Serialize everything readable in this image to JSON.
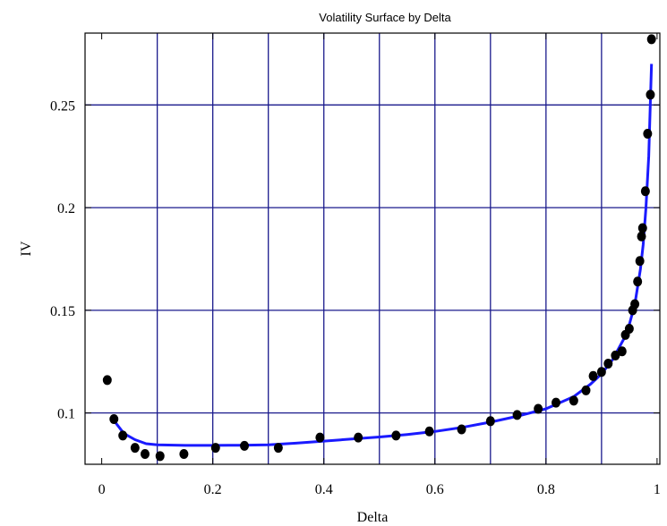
{
  "chart_data": {
    "type": "scatter",
    "title": "Volatility Surface by Delta",
    "xlabel": "Delta",
    "ylabel": "IV",
    "xlim": [
      -0.03,
      1.005
    ],
    "ylim": [
      0.075,
      0.285
    ],
    "grid": true,
    "x_ticks": [
      0,
      0.2,
      0.4,
      0.6,
      0.8,
      1
    ],
    "x_tick_labels": [
      "0",
      "0.2",
      "0.4",
      "0.6",
      "0.8",
      "1"
    ],
    "x_grid": [
      0.1,
      0.2,
      0.3,
      0.4,
      0.5,
      0.6,
      0.7,
      0.8,
      0.9
    ],
    "y_ticks": [
      0.1,
      0.15,
      0.2,
      0.25
    ],
    "y_tick_labels": [
      "0.1",
      "0.15",
      "0.2",
      "0.25"
    ],
    "y_grid": [
      0.1,
      0.15,
      0.2,
      0.25
    ],
    "colors": {
      "grid": "#1a1a8c",
      "fit_line": "#1a1aff",
      "points": "#000000",
      "frame": "#000000"
    },
    "points": [
      {
        "x": 0.01,
        "y": 0.116
      },
      {
        "x": 0.022,
        "y": 0.097
      },
      {
        "x": 0.038,
        "y": 0.089
      },
      {
        "x": 0.06,
        "y": 0.083
      },
      {
        "x": 0.078,
        "y": 0.08
      },
      {
        "x": 0.105,
        "y": 0.079
      },
      {
        "x": 0.148,
        "y": 0.08
      },
      {
        "x": 0.205,
        "y": 0.083
      },
      {
        "x": 0.257,
        "y": 0.084
      },
      {
        "x": 0.318,
        "y": 0.083
      },
      {
        "x": 0.393,
        "y": 0.088
      },
      {
        "x": 0.462,
        "y": 0.088
      },
      {
        "x": 0.53,
        "y": 0.089
      },
      {
        "x": 0.59,
        "y": 0.091
      },
      {
        "x": 0.648,
        "y": 0.092
      },
      {
        "x": 0.7,
        "y": 0.096
      },
      {
        "x": 0.748,
        "y": 0.099
      },
      {
        "x": 0.786,
        "y": 0.102
      },
      {
        "x": 0.818,
        "y": 0.105
      },
      {
        "x": 0.85,
        "y": 0.106
      },
      {
        "x": 0.872,
        "y": 0.111
      },
      {
        "x": 0.885,
        "y": 0.118
      },
      {
        "x": 0.9,
        "y": 0.12
      },
      {
        "x": 0.912,
        "y": 0.124
      },
      {
        "x": 0.925,
        "y": 0.128
      },
      {
        "x": 0.937,
        "y": 0.13
      },
      {
        "x": 0.943,
        "y": 0.138
      },
      {
        "x": 0.95,
        "y": 0.141
      },
      {
        "x": 0.956,
        "y": 0.15
      },
      {
        "x": 0.96,
        "y": 0.153
      },
      {
        "x": 0.965,
        "y": 0.164
      },
      {
        "x": 0.969,
        "y": 0.174
      },
      {
        "x": 0.972,
        "y": 0.186
      },
      {
        "x": 0.974,
        "y": 0.19
      },
      {
        "x": 0.979,
        "y": 0.208
      },
      {
        "x": 0.983,
        "y": 0.236
      },
      {
        "x": 0.988,
        "y": 0.255
      },
      {
        "x": 0.99,
        "y": 0.282
      }
    ],
    "fit_curve": [
      {
        "x": 0.02,
        "y": 0.097
      },
      {
        "x": 0.04,
        "y": 0.09
      },
      {
        "x": 0.06,
        "y": 0.087
      },
      {
        "x": 0.08,
        "y": 0.085
      },
      {
        "x": 0.1,
        "y": 0.0845
      },
      {
        "x": 0.15,
        "y": 0.0842
      },
      {
        "x": 0.2,
        "y": 0.0842
      },
      {
        "x": 0.25,
        "y": 0.0843
      },
      {
        "x": 0.3,
        "y": 0.0845
      },
      {
        "x": 0.35,
        "y": 0.0853
      },
      {
        "x": 0.4,
        "y": 0.0863
      },
      {
        "x": 0.45,
        "y": 0.0873
      },
      {
        "x": 0.5,
        "y": 0.0883
      },
      {
        "x": 0.55,
        "y": 0.0895
      },
      {
        "x": 0.6,
        "y": 0.091
      },
      {
        "x": 0.65,
        "y": 0.093
      },
      {
        "x": 0.7,
        "y": 0.0955
      },
      {
        "x": 0.75,
        "y": 0.0985
      },
      {
        "x": 0.8,
        "y": 0.102
      },
      {
        "x": 0.85,
        "y": 0.108
      },
      {
        "x": 0.88,
        "y": 0.114
      },
      {
        "x": 0.9,
        "y": 0.119
      },
      {
        "x": 0.92,
        "y": 0.126
      },
      {
        "x": 0.94,
        "y": 0.136
      },
      {
        "x": 0.95,
        "y": 0.143
      },
      {
        "x": 0.96,
        "y": 0.153
      },
      {
        "x": 0.97,
        "y": 0.17
      },
      {
        "x": 0.975,
        "y": 0.182
      },
      {
        "x": 0.98,
        "y": 0.2
      },
      {
        "x": 0.985,
        "y": 0.225
      },
      {
        "x": 0.99,
        "y": 0.27
      }
    ]
  }
}
